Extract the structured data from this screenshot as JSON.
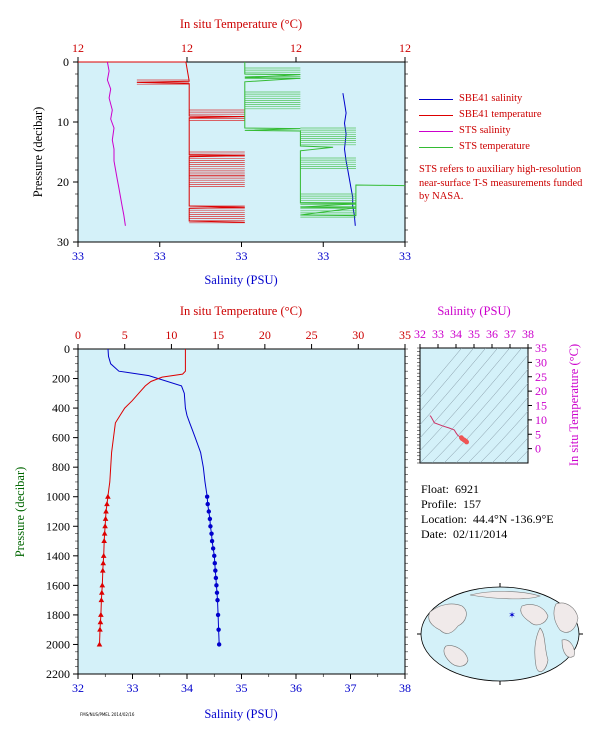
{
  "colors": {
    "plot_bg": "#d4f1f9",
    "salinity_axis": "#0000cc",
    "temperature_axis": "#cc0000",
    "pressure_axis": "#006600",
    "sbe_salinity": "#0000cc",
    "sbe_temperature": "#dd0000",
    "sts_salinity": "#cc00cc",
    "sts_temperature": "#33bb33",
    "ts_axis": "#cc00cc"
  },
  "legend": {
    "items": [
      {
        "label": "SBE41 salinity",
        "color": "#0000cc"
      },
      {
        "label": "SBE41 temperature",
        "color": "#dd0000"
      },
      {
        "label": "STS salinity",
        "color": "#cc00cc"
      },
      {
        "label": "STS temperature",
        "color": "#33bb33"
      }
    ]
  },
  "note": "STS refers to auxiliary high-resolution near-surface T-S measurements funded by NASA.",
  "info": {
    "float_label": "Float:",
    "float_value": "6921",
    "profile_label": "Profile:",
    "profile_value": "157",
    "location_label": "Location:",
    "location_value": "44.4°N  -136.9°E",
    "date_label": "Date:",
    "date_value": "02/11/2014"
  },
  "credit": "FMS/NUS/PMEL 2014/02/16",
  "chart_data": [
    {
      "id": "near-surface",
      "type": "line",
      "title": "",
      "xlabel": "Salinity (PSU)",
      "x2label": "In situ Temperature (°C)",
      "ylabel": "Pressure (decibar)",
      "ylim": [
        30,
        0
      ],
      "x_ticks": [
        "33",
        "33",
        "33",
        "33",
        "33"
      ],
      "x2_ticks": [
        "12",
        "12",
        "12",
        "12"
      ],
      "y_ticks": [
        "0",
        "10",
        "20",
        "30"
      ],
      "grid": false,
      "series": [
        {
          "name": "SBE41 salinity",
          "points": [
            [
              0.81,
              5.2
            ],
            [
              0.815,
              6.8
            ],
            [
              0.82,
              8.5
            ],
            [
              0.815,
              10.2
            ],
            [
              0.82,
              12.0
            ],
            [
              0.815,
              14.5
            ],
            [
              0.82,
              16.5
            ],
            [
              0.825,
              18.0
            ],
            [
              0.83,
              19.5
            ],
            [
              0.835,
              21.0
            ],
            [
              0.84,
              22.5
            ],
            [
              0.84,
              24.0
            ],
            [
              0.845,
              25.5
            ],
            [
              0.848,
              27.3
            ]
          ]
        },
        {
          "name": "SBE41 temperature",
          "points": [
            [
              0.0,
              0.0
            ],
            [
              0.33,
              0.0
            ],
            [
              0.34,
              3.2
            ],
            [
              0.18,
              3.4
            ],
            [
              0.34,
              3.6
            ],
            [
              0.34,
              8.0
            ],
            [
              0.34,
              9.0
            ],
            [
              0.51,
              9.1
            ],
            [
              0.34,
              9.3
            ],
            [
              0.34,
              15.5
            ],
            [
              0.51,
              15.6
            ],
            [
              0.34,
              15.8
            ],
            [
              0.34,
              24.0
            ],
            [
              0.51,
              24.2
            ],
            [
              0.34,
              24.4
            ],
            [
              0.34,
              26.5
            ],
            [
              0.51,
              26.7
            ]
          ]
        },
        {
          "name": "STS salinity",
          "points": [
            [
              0.09,
              0.0
            ],
            [
              0.095,
              1.5
            ],
            [
              0.09,
              3.0
            ],
            [
              0.1,
              4.5
            ],
            [
              0.095,
              6.0
            ],
            [
              0.105,
              8.0
            ],
            [
              0.1,
              9.5
            ],
            [
              0.11,
              11.0
            ],
            [
              0.105,
              13.0
            ],
            [
              0.11,
              14.5
            ],
            [
              0.11,
              16.5
            ],
            [
              0.115,
              18.0
            ],
            [
              0.12,
              19.5
            ],
            [
              0.125,
              21.0
            ],
            [
              0.13,
              22.5
            ],
            [
              0.135,
              24.0
            ],
            [
              0.14,
              25.5
            ],
            [
              0.145,
              27.3
            ]
          ]
        },
        {
          "name": "STS temperature",
          "points": [
            [
              0.51,
              0.0
            ],
            [
              0.51,
              2.0
            ],
            [
              0.68,
              2.1
            ],
            [
              0.51,
              2.6
            ],
            [
              0.68,
              2.7
            ],
            [
              0.51,
              3.3
            ],
            [
              0.51,
              11.0
            ],
            [
              0.68,
              11.1
            ],
            [
              0.51,
              11.4
            ],
            [
              0.68,
              11.5
            ],
            [
              0.68,
              14.0
            ],
            [
              0.78,
              14.2
            ],
            [
              0.68,
              14.8
            ],
            [
              0.68,
              23.5
            ],
            [
              0.85,
              23.6
            ],
            [
              0.68,
              24.2
            ],
            [
              0.85,
              24.3
            ],
            [
              0.68,
              25.5
            ],
            [
              0.85,
              25.6
            ],
            [
              0.85,
              20.5
            ],
            [
              1.0,
              20.6
            ]
          ]
        }
      ]
    },
    {
      "id": "full-profile",
      "type": "line",
      "title": "",
      "xlabel": "Salinity (PSU)",
      "x2label": "In situ Temperature (°C)",
      "ylabel": "Pressure (decibar)",
      "xlim": [
        32,
        38
      ],
      "x2lim": [
        0,
        35
      ],
      "ylim": [
        2200,
        0
      ],
      "x_ticks": [
        32,
        33,
        34,
        35,
        36,
        37,
        38
      ],
      "x2_ticks": [
        0,
        5,
        10,
        15,
        20,
        25,
        30,
        35
      ],
      "y_ticks": [
        0,
        200,
        400,
        600,
        800,
        1000,
        1200,
        1400,
        1600,
        1800,
        2000,
        2200
      ],
      "grid": false,
      "series": [
        {
          "name": "Salinity",
          "axis": "x",
          "x": [
            32.55,
            32.56,
            32.6,
            32.75,
            33.3,
            33.9,
            33.95,
            33.97,
            34.0,
            34.05,
            34.1,
            34.15,
            34.2,
            34.25,
            34.3,
            34.33,
            34.35,
            34.37,
            34.38,
            34.4,
            34.42,
            34.43,
            34.45,
            34.46,
            34.48,
            34.5,
            34.51,
            34.52,
            34.53,
            34.54,
            34.55,
            34.56,
            34.57,
            34.58,
            34.59
          ],
          "y": [
            0,
            50,
            100,
            150,
            180,
            250,
            300,
            400,
            450,
            500,
            550,
            600,
            650,
            700,
            800,
            900,
            950,
            1000,
            1050,
            1100,
            1150,
            1200,
            1250,
            1300,
            1350,
            1400,
            1450,
            1500,
            1550,
            1600,
            1650,
            1700,
            1800,
            1900,
            2000
          ]
        },
        {
          "name": "Temperature",
          "axis": "x2",
          "x": [
            11.5,
            11.5,
            11.2,
            9.0,
            7.8,
            7.2,
            6.5,
            5.8,
            5.0,
            4.5,
            4.0,
            3.8,
            3.6,
            3.5,
            3.4,
            3.3,
            3.2,
            3.1,
            3.0,
            2.95,
            2.9,
            2.85,
            2.8,
            2.75,
            2.7,
            2.65,
            2.6,
            2.55,
            2.5,
            2.45,
            2.4,
            2.35,
            2.3
          ],
          "y": [
            0,
            150,
            170,
            190,
            220,
            250,
            300,
            350,
            400,
            450,
            500,
            600,
            700,
            800,
            900,
            950,
            1000,
            1050,
            1100,
            1150,
            1200,
            1250,
            1300,
            1400,
            1450,
            1500,
            1600,
            1650,
            1700,
            1800,
            1850,
            1900,
            2000
          ]
        }
      ]
    },
    {
      "id": "ts-diagram",
      "type": "line",
      "title": "",
      "xlabel": "Salinity (PSU)",
      "ylabel": "In situ Temperature (°C)",
      "xlim": [
        32,
        38
      ],
      "ylim": [
        -5,
        35
      ],
      "x_ticks": [
        32,
        33,
        34,
        35,
        36,
        37,
        38
      ],
      "y_ticks": [
        0,
        5,
        10,
        15,
        20,
        25,
        30,
        35
      ],
      "series": [
        {
          "name": "T-S",
          "x": [
            32.55,
            32.6,
            32.8,
            33.3,
            33.6,
            33.9,
            34.0,
            34.1,
            34.3,
            34.35,
            34.45,
            34.55,
            34.59
          ],
          "y": [
            11.5,
            11.2,
            9.0,
            7.8,
            7.2,
            6.5,
            5.5,
            4.6,
            3.8,
            3.4,
            3.0,
            2.6,
            2.3
          ]
        }
      ]
    }
  ]
}
